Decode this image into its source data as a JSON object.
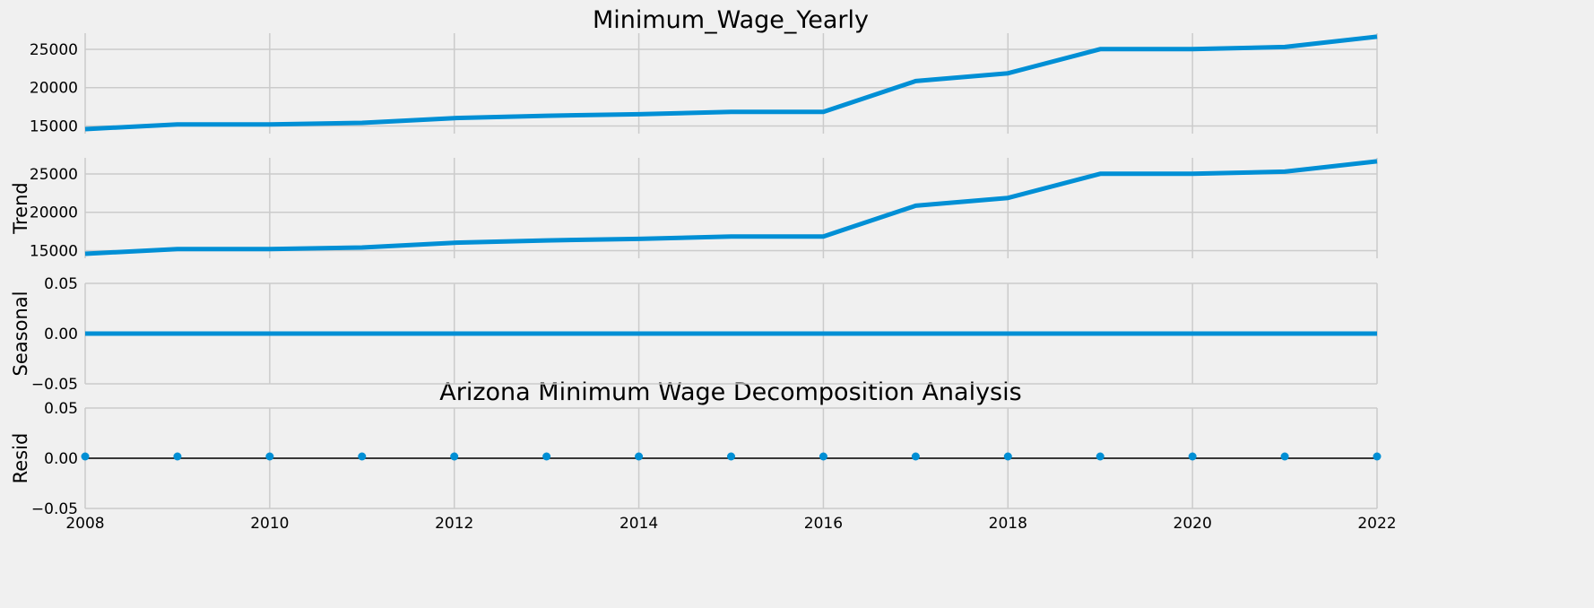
{
  "chart_data": {
    "type": "line",
    "title": "Arizona Minimum Wage Decomposition Analysis",
    "x": [
      2008,
      2009,
      2010,
      2011,
      2012,
      2013,
      2014,
      2015,
      2016,
      2017,
      2018,
      2019,
      2020,
      2021,
      2022
    ],
    "xlim": [
      2008,
      2022
    ],
    "xticks": [
      "2008",
      "2010",
      "2012",
      "2014",
      "2016",
      "2018",
      "2020",
      "2022"
    ],
    "grid": true,
    "color": "#008fd5",
    "panels": [
      {
        "name": "observed",
        "title": "Minimum_Wage_Yearly",
        "ylabel": "",
        "ylim": [
          14000,
          27100
        ],
        "yticks": [
          "15000",
          "20000",
          "25000"
        ],
        "ytick_values": [
          15000,
          20000,
          25000
        ],
        "values": [
          14590,
          15210,
          15210,
          15400,
          16020,
          16330,
          16530,
          16840,
          16840,
          20850,
          21870,
          25020,
          25020,
          25300,
          26640
        ]
      },
      {
        "name": "trend",
        "title": "",
        "ylabel": "Trend",
        "ylim": [
          14000,
          27100
        ],
        "yticks": [
          "15000",
          "20000",
          "25000"
        ],
        "ytick_values": [
          15000,
          20000,
          25000
        ],
        "values": [
          14590,
          15210,
          15210,
          15400,
          16020,
          16330,
          16530,
          16840,
          16840,
          20850,
          21870,
          25020,
          25020,
          25300,
          26640
        ]
      },
      {
        "name": "seasonal",
        "title": "",
        "ylabel": "Seasonal",
        "ylim": [
          -0.05,
          0.05
        ],
        "yticks": [
          "0.05",
          "0.00",
          "−0.05"
        ],
        "ytick_values": [
          0.05,
          0.0,
          -0.05
        ],
        "values": [
          0,
          0,
          0,
          0,
          0,
          0,
          0,
          0,
          0,
          0,
          0,
          0,
          0,
          0,
          0
        ]
      },
      {
        "name": "resid",
        "title": "",
        "ylabel": "Resid",
        "ylim": [
          -0.05,
          0.05
        ],
        "yticks": [
          "0.05",
          "0.00",
          "−0.05"
        ],
        "ytick_values": [
          0.05,
          0.0,
          -0.05
        ],
        "values": [
          0,
          0,
          0,
          0,
          0,
          0,
          0,
          0,
          0,
          0,
          0,
          0,
          0,
          0,
          0
        ],
        "markers": true,
        "zero_line": true
      }
    ]
  }
}
